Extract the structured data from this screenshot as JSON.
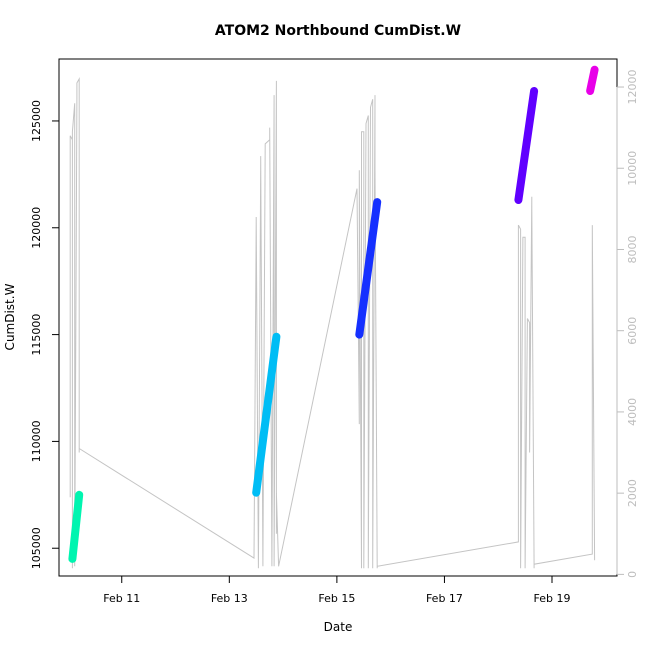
{
  "chart_data": {
    "type": "line",
    "title": "ATOM2 Northbound CumDist.W",
    "xlabel": "Date",
    "ylabel": "CumDist.W",
    "xlim": [
      "Feb 09 20:00",
      "Feb 20 05:00"
    ],
    "x_ticks": [
      "Feb 11",
      "Feb 13",
      "Feb 15",
      "Feb 17",
      "Feb 19"
    ],
    "y_left": {
      "range": [
        103700,
        127900
      ],
      "ticks": [
        105000,
        110000,
        115000,
        120000,
        125000
      ]
    },
    "y_right": {
      "range": [
        -40,
        12690
      ],
      "ticks": [
        0,
        2000,
        4000,
        6000,
        8000,
        10000,
        12000
      ],
      "color": "#bdbdbd"
    },
    "grid": false,
    "legend": "none",
    "series": [
      {
        "axis": "left",
        "style": "thick-points",
        "segments": [
          {
            "color": "#00f5b0",
            "x": [
              "Feb 10 02:00",
              "Feb 10 05:00"
            ],
            "y": [
              104500,
              107500
            ]
          },
          {
            "color": "#00bdf5",
            "x": [
              "Feb 13 12:00",
              "Feb 13 21:00"
            ],
            "y": [
              107600,
              114900
            ]
          },
          {
            "color": "#1530ff",
            "x": [
              "Feb 15 10:00",
              "Feb 15 18:00"
            ],
            "y": [
              115000,
              121200
            ]
          },
          {
            "color": "#6000ff",
            "x": [
              "Feb 18 09:00",
              "Feb 18 16:00"
            ],
            "y": [
              121300,
              126400
            ]
          },
          {
            "color": "#e800e8",
            "x": [
              "Feb 19 17:00",
              "Feb 19 19:00"
            ],
            "y": [
              126400,
              127400
            ]
          }
        ]
      },
      {
        "axis": "right",
        "style": "thin-line",
        "color": "#c4c4c4",
        "x": [
          "Feb 10 01:00",
          "Feb 10 01:00",
          "Feb 10 02:00",
          "Feb 10 02:00",
          "Feb 10 02:00",
          "Feb 10 03:00",
          "Feb 10 03:00",
          "Feb 10 04:00",
          "Feb 10 04:00",
          "Feb 10 05:00",
          "Feb 10 05:00",
          "Feb 10 05:00",
          "Feb 13 11:00",
          "Feb 13 12:00",
          "Feb 13 12:00",
          "Feb 13 13:00",
          "Feb 13 14:00",
          "Feb 13 14:00",
          "Feb 13 15:00",
          "Feb 13 16:00",
          "Feb 13 18:00",
          "Feb 13 18:00",
          "Feb 13 19:00",
          "Feb 13 20:00",
          "Feb 13 20:00",
          "Feb 13 21:00",
          "Feb 13 21:00",
          "Feb 13 21:00",
          "Feb 13 22:00",
          "Feb 15 09:00",
          "Feb 15 10:00",
          "Feb 15 10:00",
          "Feb 15 11:00",
          "Feb 15 11:00",
          "Feb 15 12:00",
          "Feb 15 12:00",
          "Feb 15 13:00",
          "Feb 15 14:00",
          "Feb 15 14:00",
          "Feb 15 15:00",
          "Feb 15 16:00",
          "Feb 15 16:00",
          "Feb 15 17:00",
          "Feb 15 17:00",
          "Feb 15 18:00",
          "Feb 15 18:00",
          "Feb 18 09:00",
          "Feb 18 09:00",
          "Feb 18 10:00",
          "Feb 18 10:00",
          "Feb 18 11:00",
          "Feb 18 12:00",
          "Feb 18 12:00",
          "Feb 18 13:00",
          "Feb 18 14:00",
          "Feb 18 14:00",
          "Feb 18 15:00",
          "Feb 18 15:00",
          "Feb 18 16:00",
          "Feb 18 16:00",
          "Feb 19 18:00",
          "Feb 19 18:00",
          "Feb 19 19:00"
        ],
        "y": [
          1900,
          10800,
          10700,
          150,
          10900,
          11600,
          200,
          11700,
          12100,
          12200,
          3000,
          3100,
          400,
          8700,
          8800,
          150,
          10100,
          10300,
          200,
          10600,
          10700,
          11000,
          200,
          11800,
          200,
          12150,
          1000,
          2000,
          200,
          9500,
          3700,
          9950,
          150,
          10900,
          10900,
          150,
          11100,
          11300,
          150,
          11500,
          11700,
          150,
          11800,
          9950,
          150,
          200,
          800,
          8600,
          8500,
          150,
          8300,
          8300,
          150,
          6300,
          6200,
          3000,
          9300,
          9100,
          150,
          250,
          500,
          8600,
          350
        ]
      }
    ]
  }
}
